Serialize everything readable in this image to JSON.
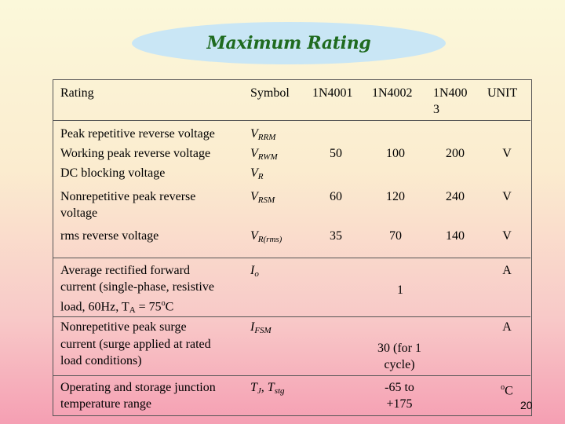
{
  "title": "Maximum Rating",
  "header": {
    "rating": "Rating",
    "symbol": "Symbol",
    "col1": "1N4001",
    "col2": "1N4002",
    "col3_line1": "1N400",
    "col3_line2": "3",
    "unit": "UNIT"
  },
  "rows": {
    "r1": {
      "rating_l1": "Peak repetitive reverse voltage",
      "rating_l2": "Working peak reverse voltage",
      "rating_l3": "DC blocking voltage",
      "sym1": "V",
      "sym1_sub": "RRM",
      "sym2": "V",
      "sym2_sub": "RWM",
      "sym3": "V",
      "sym3_sub": "R",
      "v1": "50",
      "v2": "100",
      "v3": "200",
      "unit": "V"
    },
    "r2": {
      "rating_l1": "Nonrepetitive peak reverse",
      "rating_l2": "voltage",
      "sym": "V",
      "sym_sub": "RSM",
      "v1": "60",
      "v2": "120",
      "v3": "240",
      "unit": "V"
    },
    "r3": {
      "rating_l1": "rms reverse voltage",
      "sym": "V",
      "sym_sub": "R(rms)",
      "v1": "35",
      "v2": "70",
      "v3": "140",
      "unit": "V"
    },
    "r4": {
      "rating_l1": "Average rectified forward",
      "rating_l2": "current (single-phase, resistive",
      "rating_l3a": "load, 60Hz, T",
      "rating_l3_sub": "A",
      "rating_l3b": " = 75",
      "rating_l3_sup": "o",
      "rating_l3c": "C",
      "sym": "I",
      "sym_sub": "o",
      "value": "1",
      "unit": "A"
    },
    "r5": {
      "rating_l1": "Nonrepetitive peak surge",
      "rating_l2": "current (surge applied at rated",
      "rating_l3": "load conditions)",
      "sym": "I",
      "sym_sub": "FSM",
      "value_l1": "30 (for 1",
      "value_l2": "cycle)",
      "unit": "A"
    },
    "r6": {
      "rating_l1": "Operating and storage junction",
      "rating_l2": "temperature range",
      "sym1": "T",
      "sym1_sub": "J",
      "sym_sep": ", T",
      "sym2_sub": "stg",
      "value_l1": "-65 to",
      "value_l2": "+175",
      "unit_sup": "o",
      "unit": "C"
    }
  },
  "page_number": "20"
}
